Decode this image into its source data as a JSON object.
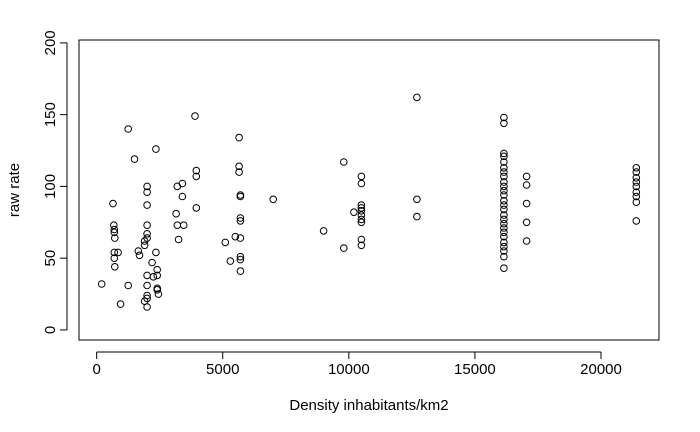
{
  "chart_data": {
    "type": "scatter",
    "title": "",
    "xlabel": "Density inhabitants/km2",
    "ylabel": "raw rate",
    "xlim": [
      -700,
      22300
    ],
    "ylim": [
      -7,
      202
    ],
    "x_ticks": [
      0,
      5000,
      10000,
      15000,
      20000
    ],
    "x_tick_labels": [
      "0",
      "5000",
      "10000",
      "15000",
      "20000"
    ],
    "y_ticks": [
      0,
      50,
      100,
      150,
      200
    ],
    "y_tick_labels": [
      "0",
      "50",
      "100",
      "150",
      "200"
    ],
    "grid": false,
    "legend": "none",
    "marker": "open-circle",
    "points": [
      [
        200,
        32
      ],
      [
        650,
        88
      ],
      [
        680,
        73
      ],
      [
        700,
        70
      ],
      [
        700,
        68
      ],
      [
        720,
        64
      ],
      [
        700,
        54
      ],
      [
        700,
        50
      ],
      [
        720,
        44
      ],
      [
        850,
        54
      ],
      [
        950,
        18
      ],
      [
        1250,
        140
      ],
      [
        1250,
        31
      ],
      [
        1500,
        119
      ],
      [
        1650,
        55
      ],
      [
        1700,
        52
      ],
      [
        1900,
        62
      ],
      [
        1900,
        59
      ],
      [
        1900,
        20
      ],
      [
        2000,
        100
      ],
      [
        2000,
        96
      ],
      [
        2000,
        87
      ],
      [
        2000,
        73
      ],
      [
        2000,
        67
      ],
      [
        2000,
        64
      ],
      [
        2000,
        38
      ],
      [
        2000,
        31
      ],
      [
        2000,
        24
      ],
      [
        2000,
        22
      ],
      [
        2000,
        16
      ],
      [
        2200,
        47
      ],
      [
        2250,
        37
      ],
      [
        2350,
        126
      ],
      [
        2350,
        54
      ],
      [
        2400,
        42
      ],
      [
        2400,
        38
      ],
      [
        2400,
        29
      ],
      [
        2400,
        28
      ],
      [
        2450,
        25
      ],
      [
        3200,
        100
      ],
      [
        3150,
        81
      ],
      [
        3200,
        73
      ],
      [
        3250,
        63
      ],
      [
        3400,
        102
      ],
      [
        3400,
        93
      ],
      [
        3450,
        73
      ],
      [
        3900,
        149
      ],
      [
        3950,
        111
      ],
      [
        3950,
        107
      ],
      [
        3950,
        85
      ],
      [
        5100,
        61
      ],
      [
        5300,
        48
      ],
      [
        5500,
        65
      ],
      [
        5650,
        134
      ],
      [
        5650,
        114
      ],
      [
        5650,
        110
      ],
      [
        5700,
        94
      ],
      [
        5700,
        93
      ],
      [
        5700,
        78
      ],
      [
        5700,
        76
      ],
      [
        5700,
        64
      ],
      [
        5700,
        51
      ],
      [
        5700,
        49
      ],
      [
        5700,
        41
      ],
      [
        7000,
        91
      ],
      [
        9000,
        69
      ],
      [
        9800,
        117
      ],
      [
        9800,
        57
      ],
      [
        10200,
        82
      ],
      [
        10500,
        107
      ],
      [
        10500,
        102
      ],
      [
        10500,
        87
      ],
      [
        10500,
        85
      ],
      [
        10500,
        83
      ],
      [
        10500,
        80
      ],
      [
        10500,
        77
      ],
      [
        10500,
        75
      ],
      [
        10500,
        63
      ],
      [
        10500,
        59
      ],
      [
        12700,
        162
      ],
      [
        12700,
        91
      ],
      [
        12700,
        79
      ],
      [
        16150,
        148
      ],
      [
        16150,
        144
      ],
      [
        16150,
        123
      ],
      [
        16150,
        121
      ],
      [
        16150,
        117
      ],
      [
        16150,
        113
      ],
      [
        16150,
        110
      ],
      [
        16150,
        107
      ],
      [
        16150,
        103
      ],
      [
        16150,
        100
      ],
      [
        16150,
        97
      ],
      [
        16150,
        94
      ],
      [
        16150,
        90
      ],
      [
        16150,
        87
      ],
      [
        16150,
        84
      ],
      [
        16150,
        80
      ],
      [
        16150,
        77
      ],
      [
        16150,
        74
      ],
      [
        16150,
        71
      ],
      [
        16150,
        68
      ],
      [
        16150,
        65
      ],
      [
        16150,
        61
      ],
      [
        16150,
        58
      ],
      [
        16150,
        55
      ],
      [
        16150,
        51
      ],
      [
        16150,
        43
      ],
      [
        17050,
        107
      ],
      [
        17050,
        101
      ],
      [
        17050,
        88
      ],
      [
        17050,
        75
      ],
      [
        17050,
        62
      ],
      [
        21400,
        113
      ],
      [
        21400,
        110
      ],
      [
        21400,
        106
      ],
      [
        21400,
        103
      ],
      [
        21400,
        100
      ],
      [
        21400,
        96
      ],
      [
        21400,
        93
      ],
      [
        21400,
        89
      ],
      [
        21400,
        76
      ]
    ]
  }
}
